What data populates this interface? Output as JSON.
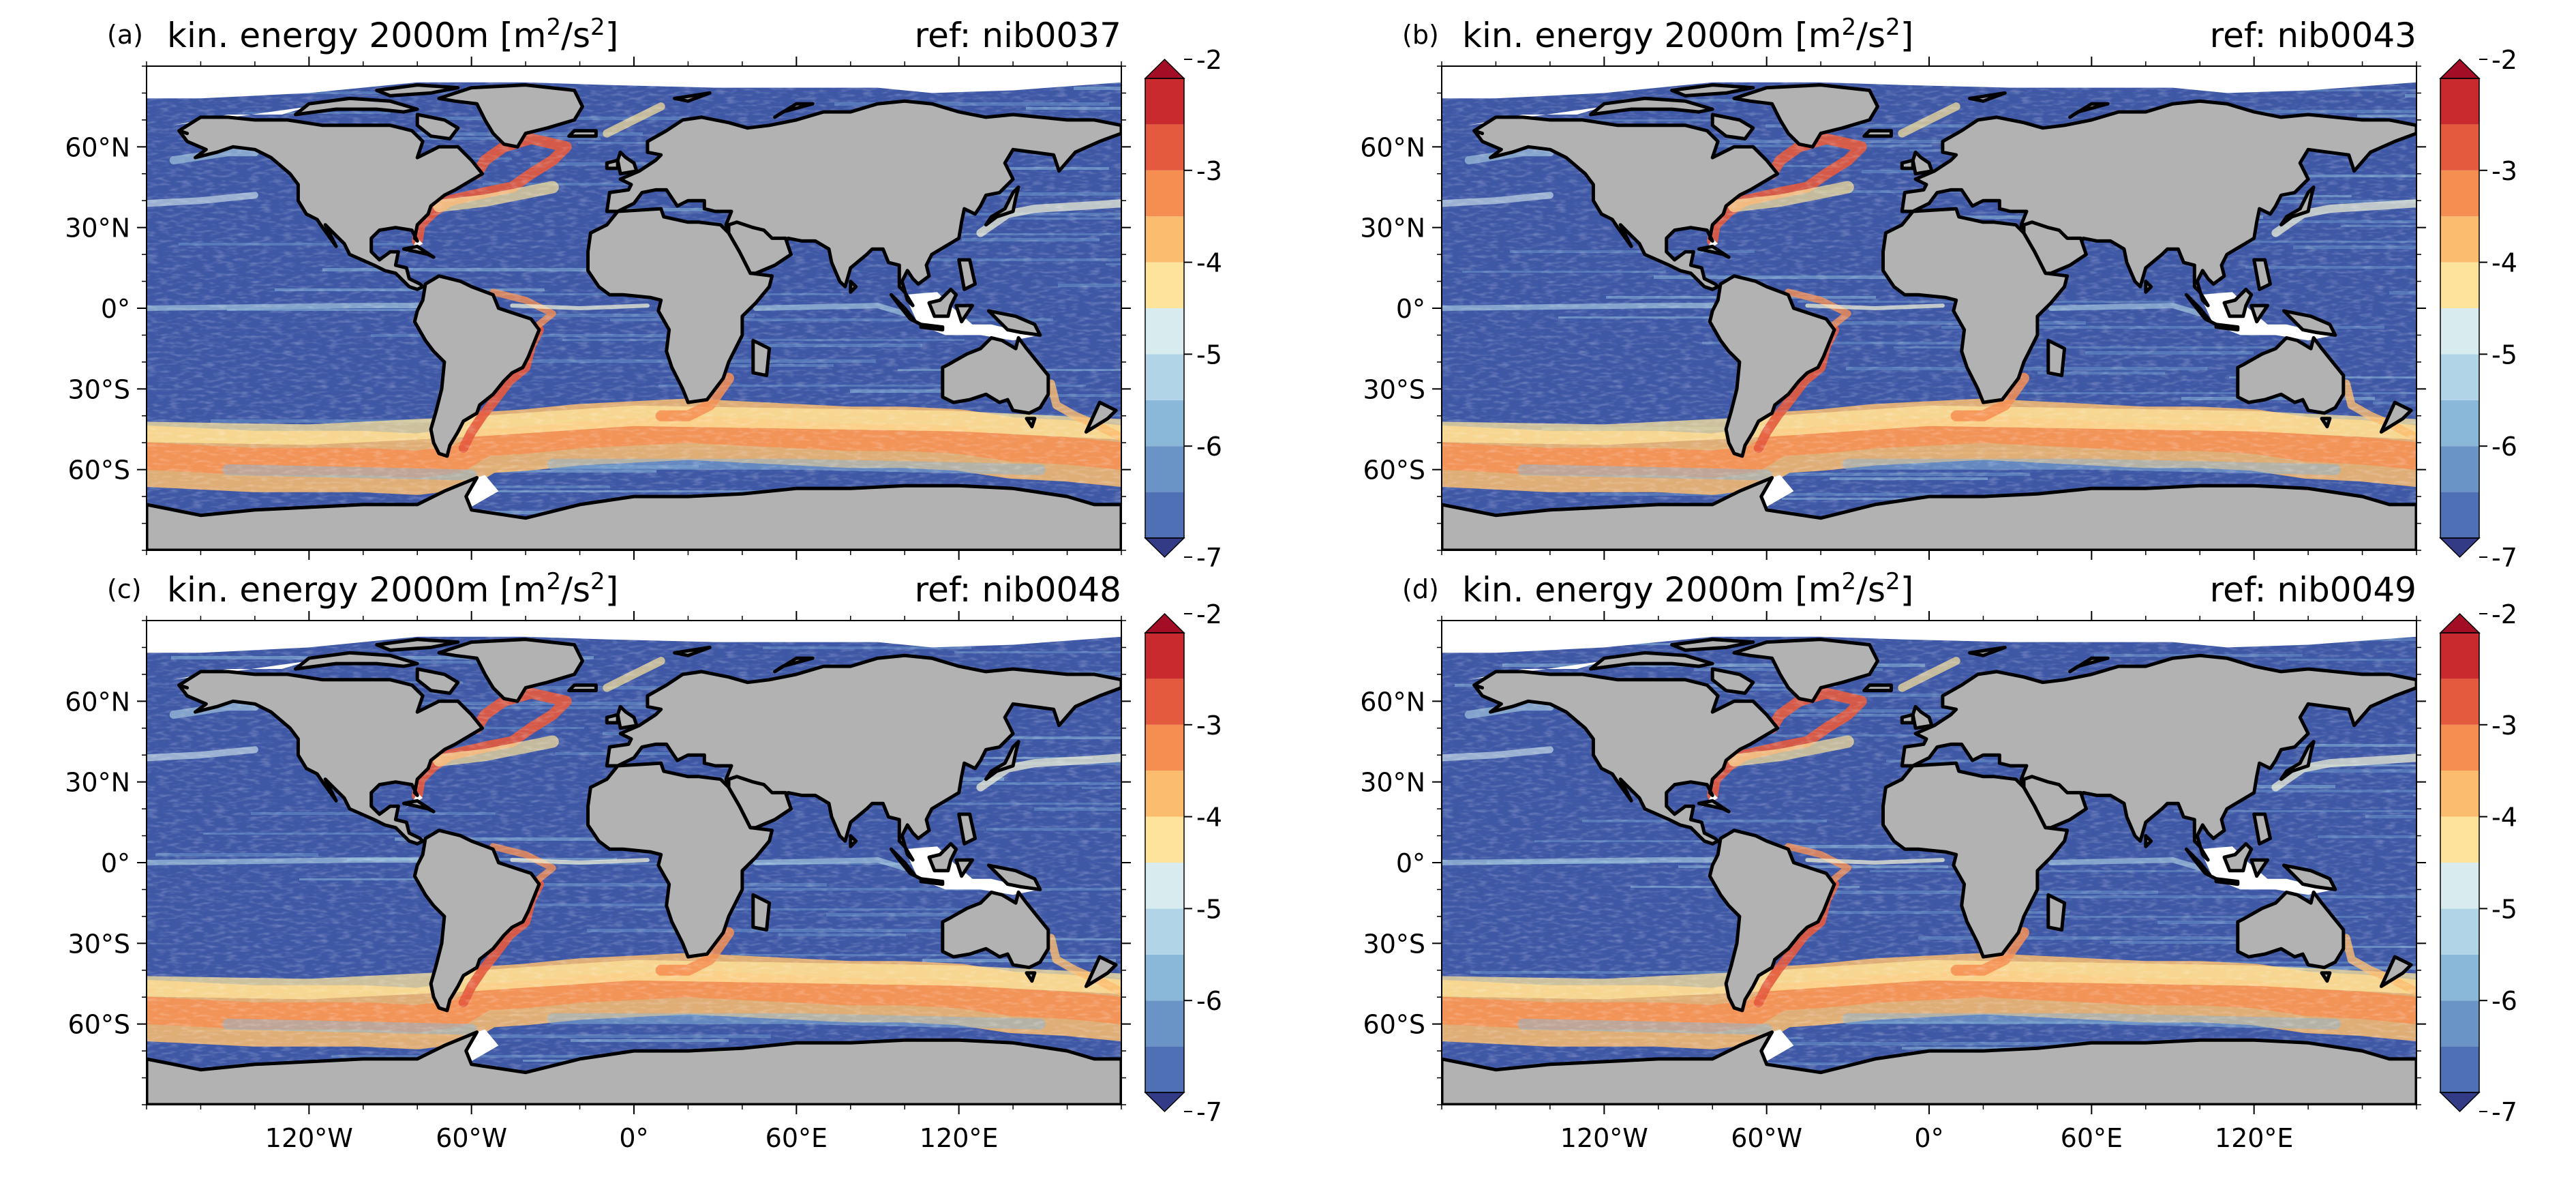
{
  "figure": {
    "panels": [
      {
        "label": "(a)",
        "title": "kin. energy 2000m [m",
        "title_sup1": "2",
        "title_mid": "/s",
        "title_sup2": "2",
        "title_end": "]",
        "ref": "ref: nib0037"
      },
      {
        "label": "(b)",
        "title": "kin. energy 2000m [m",
        "title_sup1": "2",
        "title_mid": "/s",
        "title_sup2": "2",
        "title_end": "]",
        "ref": "ref: nib0043"
      },
      {
        "label": "(c)",
        "title": "kin. energy 2000m [m",
        "title_sup1": "2",
        "title_mid": "/s",
        "title_sup2": "2",
        "title_end": "]",
        "ref": "ref: nib0048"
      },
      {
        "label": "(d)",
        "title": "kin. energy 2000m [m",
        "title_sup1": "2",
        "title_mid": "/s",
        "title_sup2": "2",
        "title_end": "]",
        "ref": "ref: nib0049"
      }
    ],
    "lat_ticks": [
      "60°N",
      "30°N",
      "0°",
      "30°S",
      "60°S"
    ],
    "lat_values": [
      60,
      30,
      0,
      -30,
      -60
    ],
    "lon_ticks": [
      "120°W",
      "60°W",
      "0°",
      "60°E",
      "120°E"
    ],
    "lon_values": [
      -120,
      -60,
      0,
      60,
      120
    ],
    "lat_range": [
      -90,
      90
    ],
    "lon_range": [
      -180,
      180
    ],
    "colorbar": {
      "ticks": [
        "-2",
        "-3",
        "-4",
        "-5",
        "-6",
        "-7"
      ],
      "tick_values": [
        -2,
        -3,
        -4,
        -5,
        -6,
        -7
      ],
      "range": [
        -7,
        -2
      ],
      "levels": 10,
      "extend": "both",
      "colors": [
        "#4f70b5",
        "#6a93c6",
        "#8ab8d8",
        "#b1d5e6",
        "#d8ecf0",
        "#f6f7d9",
        "#fde49a",
        "#fcbc6d",
        "#f68e52",
        "#e45a3e",
        "#c82a2d"
      ],
      "over_color": "#a30d26",
      "under_color": "#333b87"
    },
    "colors": {
      "land": "#b2b2b2",
      "ocean_low": "#3f58a6",
      "ice_blank": "#ffffff",
      "coast": "#000000"
    }
  }
}
